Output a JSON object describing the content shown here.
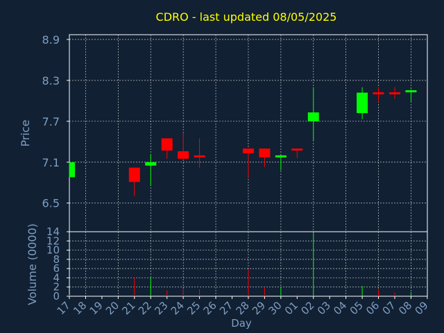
{
  "chart_data": {
    "type": "candlestick",
    "title": "CDRO - last updated 08/05/2025",
    "colors": {
      "background": "#112033",
      "frame": "#ffffff",
      "grid": "#c8c8c8",
      "title": "#ffff00",
      "axis_text": "#7f9fc2",
      "up": "#00ff00",
      "down": "#ff0000"
    },
    "x": {
      "label": "Day",
      "tick_labels": [
        "17",
        "18",
        "19",
        "20",
        "21",
        "22",
        "23",
        "24",
        "25",
        "26",
        "27",
        "28",
        "29",
        "30",
        "01",
        "02",
        "03",
        "04",
        "05",
        "06",
        "07",
        "08",
        "09"
      ]
    },
    "price_panel": {
      "ylabel": "Price",
      "ylim": [
        6.08,
        8.97
      ],
      "ticks": [
        6.5,
        7.1,
        7.7,
        8.3,
        8.9
      ],
      "tick_labels": [
        "6.5",
        "7.1",
        "7.7",
        "8.3",
        "8.9"
      ]
    },
    "volume_panel": {
      "ylabel": "Volume (0000)",
      "ylim": [
        0,
        14
      ],
      "ticks": [
        0,
        2,
        4,
        6,
        8,
        10,
        12,
        14
      ],
      "tick_labels": [
        "0",
        "2",
        "4",
        "6",
        "8",
        "10",
        "12",
        "14"
      ]
    },
    "candles": [
      {
        "day": "17",
        "open": 6.88,
        "high": 7.1,
        "low": 6.88,
        "close": 7.1,
        "volume": 0.3
      },
      {
        "day": "21",
        "open": 7.02,
        "high": 7.02,
        "low": 6.6,
        "close": 6.81,
        "volume": 4.0
      },
      {
        "day": "22",
        "open": 7.05,
        "high": 7.22,
        "low": 6.75,
        "close": 7.1,
        "volume": 4.1
      },
      {
        "day": "23",
        "open": 7.45,
        "high": 7.45,
        "low": 7.15,
        "close": 7.27,
        "volume": 1.3
      },
      {
        "day": "24",
        "open": 7.26,
        "high": 7.53,
        "low": 7.13,
        "close": 7.15,
        "volume": 1.6
      },
      {
        "day": "25",
        "open": 7.2,
        "high": 7.45,
        "low": 7.02,
        "close": 7.17,
        "volume": 1.5
      },
      {
        "day": "28",
        "open": 7.3,
        "high": 7.3,
        "low": 6.88,
        "close": 7.23,
        "volume": 5.8
      },
      {
        "day": "29",
        "open": 7.3,
        "high": 7.3,
        "low": 7.03,
        "close": 7.17,
        "volume": 1.8
      },
      {
        "day": "30",
        "open": 7.17,
        "high": 7.2,
        "low": 6.98,
        "close": 7.2,
        "volume": 1.7
      },
      {
        "day": "01",
        "open": 7.3,
        "high": 7.3,
        "low": 7.16,
        "close": 7.27,
        "volume": 0.4
      },
      {
        "day": "02",
        "open": 7.7,
        "high": 8.2,
        "low": 7.42,
        "close": 7.83,
        "volume": 13.8
      },
      {
        "day": "05",
        "open": 7.82,
        "high": 8.2,
        "low": 7.73,
        "close": 8.12,
        "volume": 2.2
      },
      {
        "day": "06",
        "open": 8.12,
        "high": 8.2,
        "low": 7.98,
        "close": 8.1,
        "volume": 1.5
      },
      {
        "day": "07",
        "open": 8.12,
        "high": 8.2,
        "low": 8.03,
        "close": 8.1,
        "volume": 0.8
      },
      {
        "day": "08",
        "open": 8.13,
        "high": 8.17,
        "low": 7.99,
        "close": 8.15,
        "volume": 0.9
      }
    ]
  }
}
